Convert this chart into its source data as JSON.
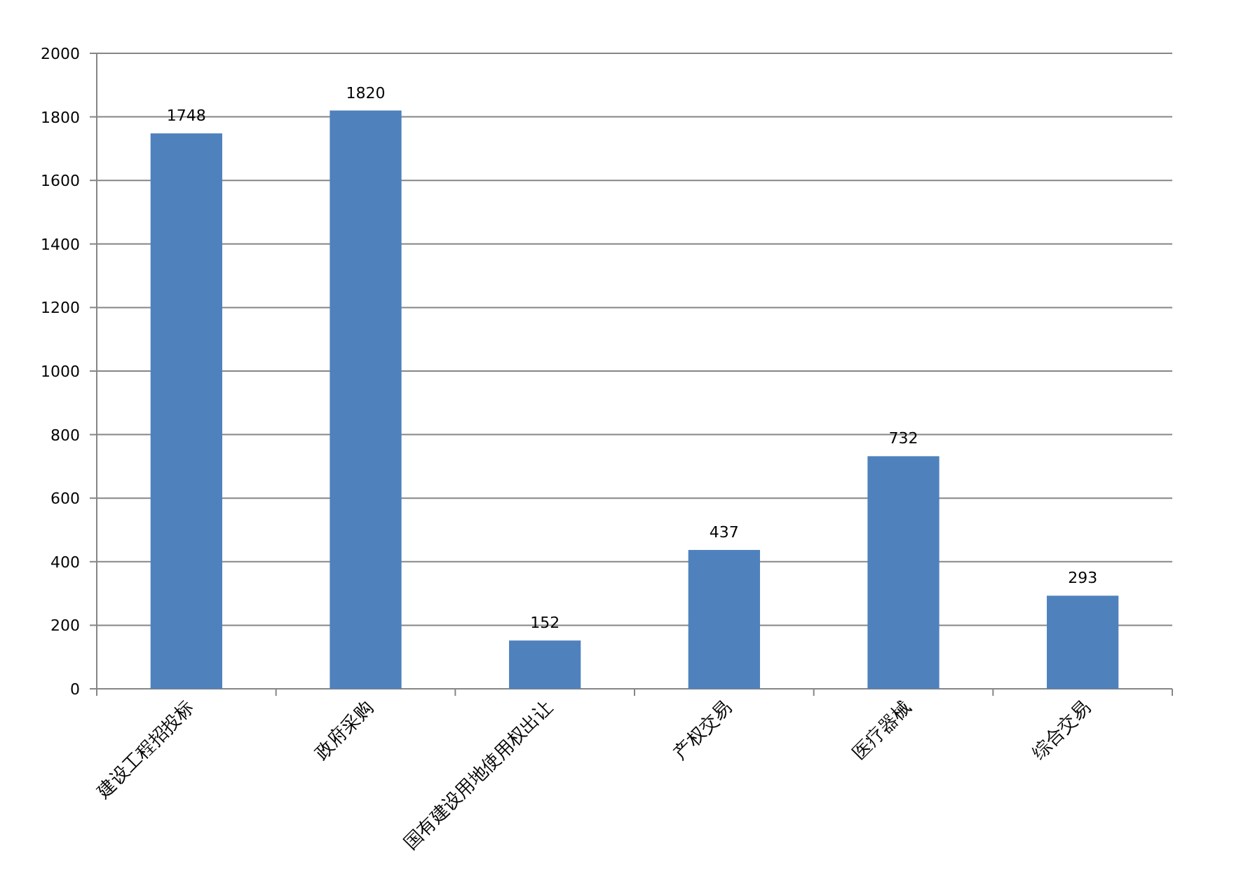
{
  "chart_data": {
    "type": "bar",
    "categories": [
      "建设工程招投标",
      "政府采购",
      "国有建设用地使用权出让",
      "产权交易",
      "医疗器械",
      "综合交易"
    ],
    "values": [
      1748,
      1820,
      152,
      437,
      732,
      293
    ],
    "color": "#4f81bd",
    "ylim": [
      0,
      2000
    ],
    "yticks": [
      0,
      200,
      400,
      600,
      800,
      1000,
      1200,
      1400,
      1600,
      1800,
      2000
    ],
    "grid": "y",
    "data_labels": true
  }
}
